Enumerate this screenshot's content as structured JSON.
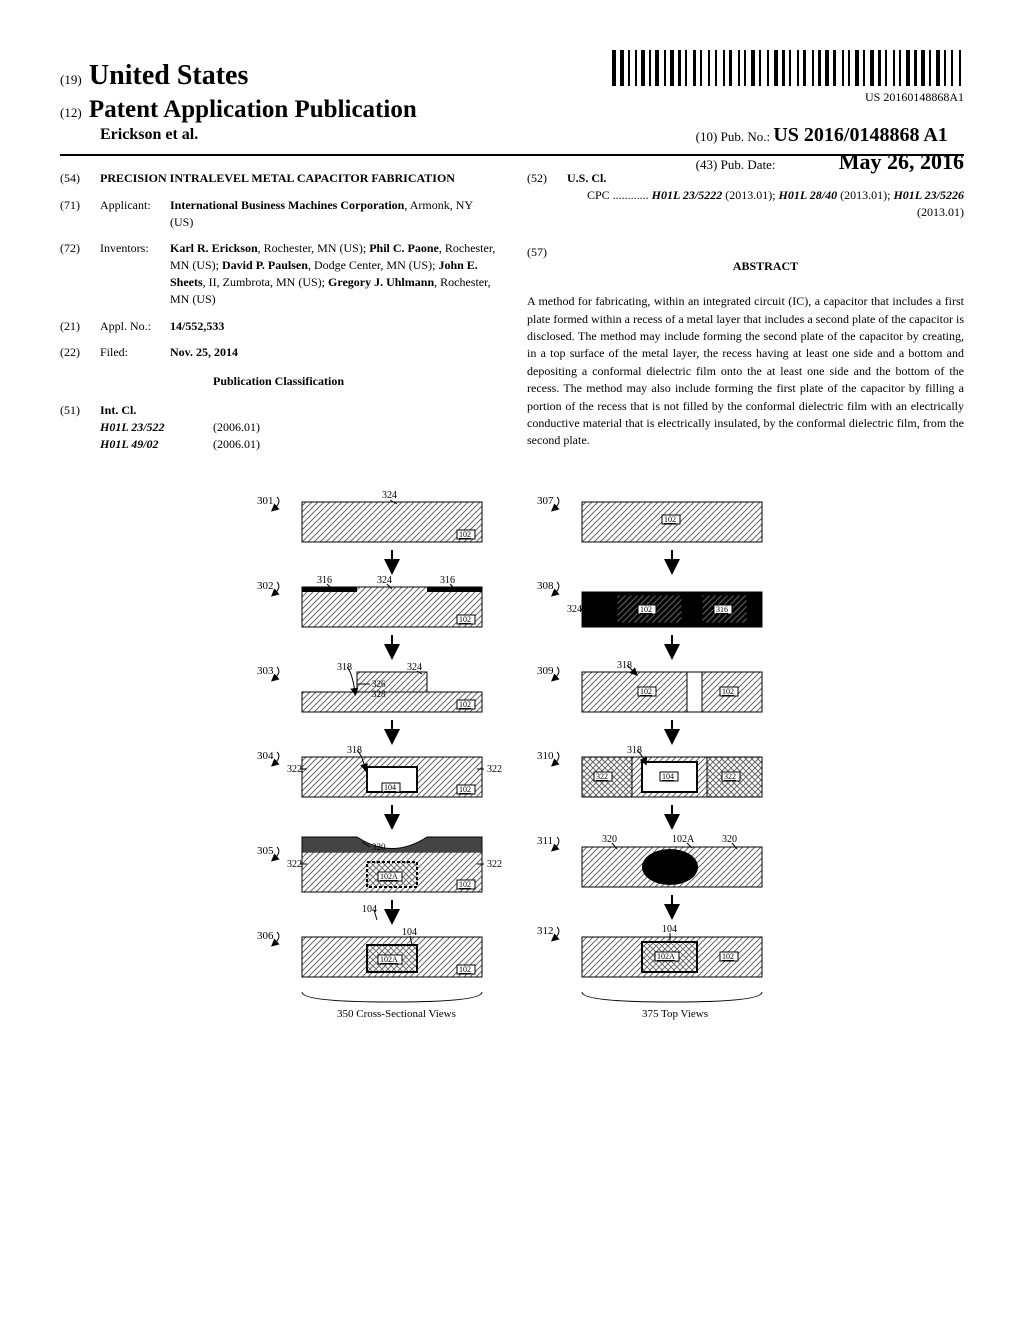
{
  "barcode_widths": [
    4,
    2,
    4,
    2,
    2,
    3,
    2,
    2,
    4,
    2,
    2,
    2,
    4,
    3,
    2,
    2,
    4,
    2,
    3,
    2,
    2,
    4,
    3,
    2,
    2,
    4,
    2,
    3,
    2,
    4,
    2,
    2,
    3,
    4,
    2,
    2,
    2,
    3,
    4,
    2,
    2,
    4,
    2,
    3,
    4,
    2,
    3,
    2,
    2,
    4,
    2,
    2,
    3,
    4,
    2,
    2,
    3,
    2,
    4,
    2,
    3,
    4,
    2,
    2,
    2,
    3,
    4,
    2,
    2,
    3,
    4,
    2,
    3,
    2,
    2,
    4,
    2,
    2,
    2,
    3,
    4,
    2,
    3,
    2,
    4,
    2,
    2,
    3,
    4,
    2,
    2,
    3,
    2,
    4,
    2,
    2
  ],
  "pubnum_small": "US 20160148868A1",
  "header": {
    "country_code": "(19)",
    "country": "United States",
    "pub_code": "(12)",
    "pub_type": "Patent Application Publication",
    "authors_short": "Erickson et al.",
    "pubno_code": "(10)",
    "pubno_label": "Pub. No.:",
    "pubno": "US 2016/0148868 A1",
    "pubdate_code": "(43)",
    "pubdate_label": "Pub. Date:",
    "pubdate": "May 26, 2016"
  },
  "left": {
    "f54_code": "(54)",
    "f54_title": "PRECISION INTRALEVEL METAL CAPACITOR FABRICATION",
    "f71_code": "(71)",
    "f71_label": "Applicant:",
    "f71_body": "International Business Machines Corporation",
    "f71_loc": ", Armonk, NY (US)",
    "f72_code": "(72)",
    "f72_label": "Inventors:",
    "f72_body": "Karl R. Erickson, Rochester, MN (US); Phil C. Paone, Rochester, MN (US); David P. Paulsen, Dodge Center, MN (US); John E. Sheets, II, Zumbrota, MN (US); Gregory J. Uhlmann, Rochester, MN (US)",
    "f21_code": "(21)",
    "f21_label": "Appl. No.:",
    "f21_body": "14/552,533",
    "f22_code": "(22)",
    "f22_label": "Filed:",
    "f22_body": "Nov. 25, 2014",
    "pubclass": "Publication Classification",
    "f51_code": "(51)",
    "f51_label": "Int. Cl.",
    "f51_r1a": "H01L 23/522",
    "f51_r1b": "(2006.01)",
    "f51_r2a": "H01L 49/02",
    "f51_r2b": "(2006.01)"
  },
  "right": {
    "f52_code": "(52)",
    "f52_label": "U.S. Cl.",
    "f52_cpc_label": "CPC ............",
    "f52_cpc": "H01L 23/5222 (2013.01); H01L 28/40 (2013.01); H01L 23/5226 (2013.01)",
    "f57_code": "(57)",
    "f57_title": "ABSTRACT",
    "abstract": "A method for fabricating, within an integrated circuit (IC), a capacitor that includes a first plate formed within a recess of a metal layer that includes a second plate of the capacitor is disclosed. The method may include forming the second plate of the capacitor by creating, in a top surface of the metal layer, the recess having at least one side and a bottom and depositing a conformal dielectric film onto the at least one side and the bottom of the recess. The method may also include forming the first plate of the capacitor by filling a portion of the recess that is not filled by the conformal dielectric film with an electrically conductive material that is electrically insulated, by the conformal dielectric film, from the second plate."
  },
  "figure": {
    "caption_left": "350 Cross-Sectional Views",
    "caption_right": "375 Top Views",
    "left_col": {
      "steps": [
        "301",
        "302",
        "303",
        "304",
        "305",
        "306"
      ],
      "labels": {
        "324": "324",
        "102": "102",
        "316": "316",
        "318": "318",
        "326": "326",
        "328": "328",
        "322": "322",
        "104": "104",
        "320": "320",
        "102A": "102A"
      }
    },
    "right_col": {
      "steps": [
        "307",
        "308",
        "309",
        "310",
        "311",
        "312"
      ],
      "labels": {
        "102": "102",
        "316": "316",
        "324": "324",
        "318": "318",
        "322": "322",
        "104": "104",
        "320": "320",
        "102A": "102A"
      }
    },
    "colors": {
      "hatch": "#999999",
      "dark": "#222222",
      "line": "#000000",
      "bg": "#ffffff"
    }
  }
}
